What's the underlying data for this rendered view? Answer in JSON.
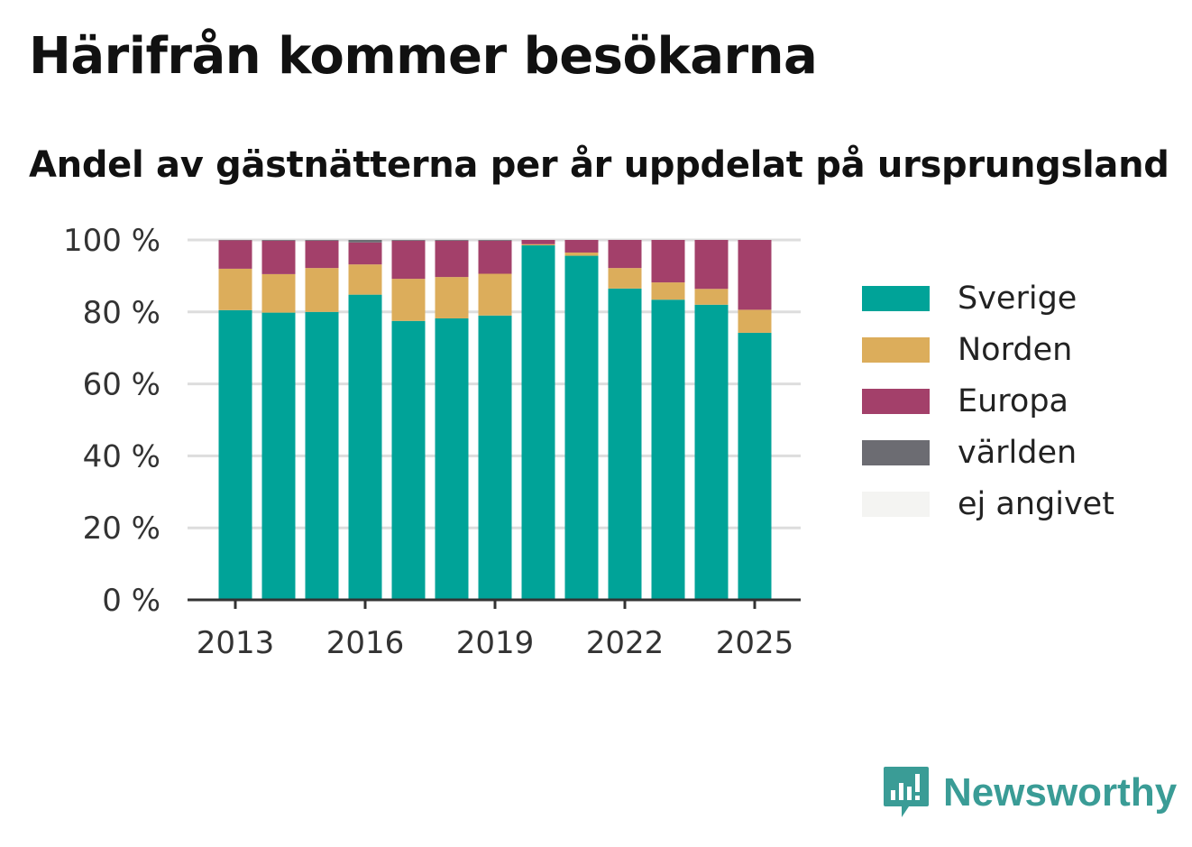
{
  "header": {
    "title": "Härifrån kommer besökarna",
    "subtitle": "Andel av gästnätterna per år uppdelat på ursprungsland"
  },
  "colors": {
    "Sverige": "#00a398",
    "Norden": "#dcad5b",
    "Europa": "#a3406a",
    "världen": "#6c6c72",
    "ej angivet": "#f4f4f2",
    "gridline": "#dddddd",
    "axis": "#333333",
    "brand": "#3a9c96"
  },
  "chart_data": {
    "type": "bar",
    "stacked": true,
    "categories": [
      "2013",
      "2014",
      "2015",
      "2016",
      "2017",
      "2018",
      "2019",
      "2020",
      "2021",
      "2022",
      "2023",
      "2024",
      "2025"
    ],
    "x_tick_labels": [
      "2013",
      "2016",
      "2019",
      "2022",
      "2025"
    ],
    "y_tick_labels": [
      "0 %",
      "20 %",
      "40 %",
      "60 %",
      "80 %",
      "100 %"
    ],
    "ylim": [
      0,
      100
    ],
    "grid": true,
    "legend_placement": "right",
    "series": [
      {
        "name": "Sverige",
        "values": [
          80.5,
          79.8,
          80,
          84.8,
          77.5,
          78.2,
          79,
          98.5,
          95.6,
          86.5,
          83.4,
          82,
          74.2
        ]
      },
      {
        "name": "Norden",
        "values": [
          11.5,
          10.7,
          12.2,
          8.4,
          11.7,
          11.5,
          11.6,
          0.3,
          0.9,
          5.7,
          4.8,
          4.4,
          6.4
        ]
      },
      {
        "name": "Europa",
        "values": [
          7.9,
          9.3,
          7.6,
          6.1,
          10.6,
          10.1,
          9.2,
          1.2,
          3.5,
          7.8,
          11.8,
          13.6,
          19.4
        ]
      },
      {
        "name": "världen",
        "values": [
          0.1,
          0.2,
          0.2,
          0.7,
          0.2,
          0.2,
          0.2,
          0,
          0,
          0,
          0,
          0,
          0
        ]
      },
      {
        "name": "ej angivet",
        "values": [
          0,
          0,
          0,
          0,
          0,
          0,
          0,
          0,
          0,
          0,
          0,
          0,
          0
        ]
      }
    ]
  },
  "legend": {
    "items": [
      {
        "label": "Sverige",
        "color": "#00a398"
      },
      {
        "label": "Norden",
        "color": "#dcad5b"
      },
      {
        "label": "Europa",
        "color": "#a3406a"
      },
      {
        "label": "världen",
        "color": "#6c6c72"
      },
      {
        "label": "ej angivet",
        "color": "#f4f4f2"
      }
    ]
  },
  "branding": {
    "name": "Newsworthy",
    "icon": "newsworthy-logo-icon"
  }
}
